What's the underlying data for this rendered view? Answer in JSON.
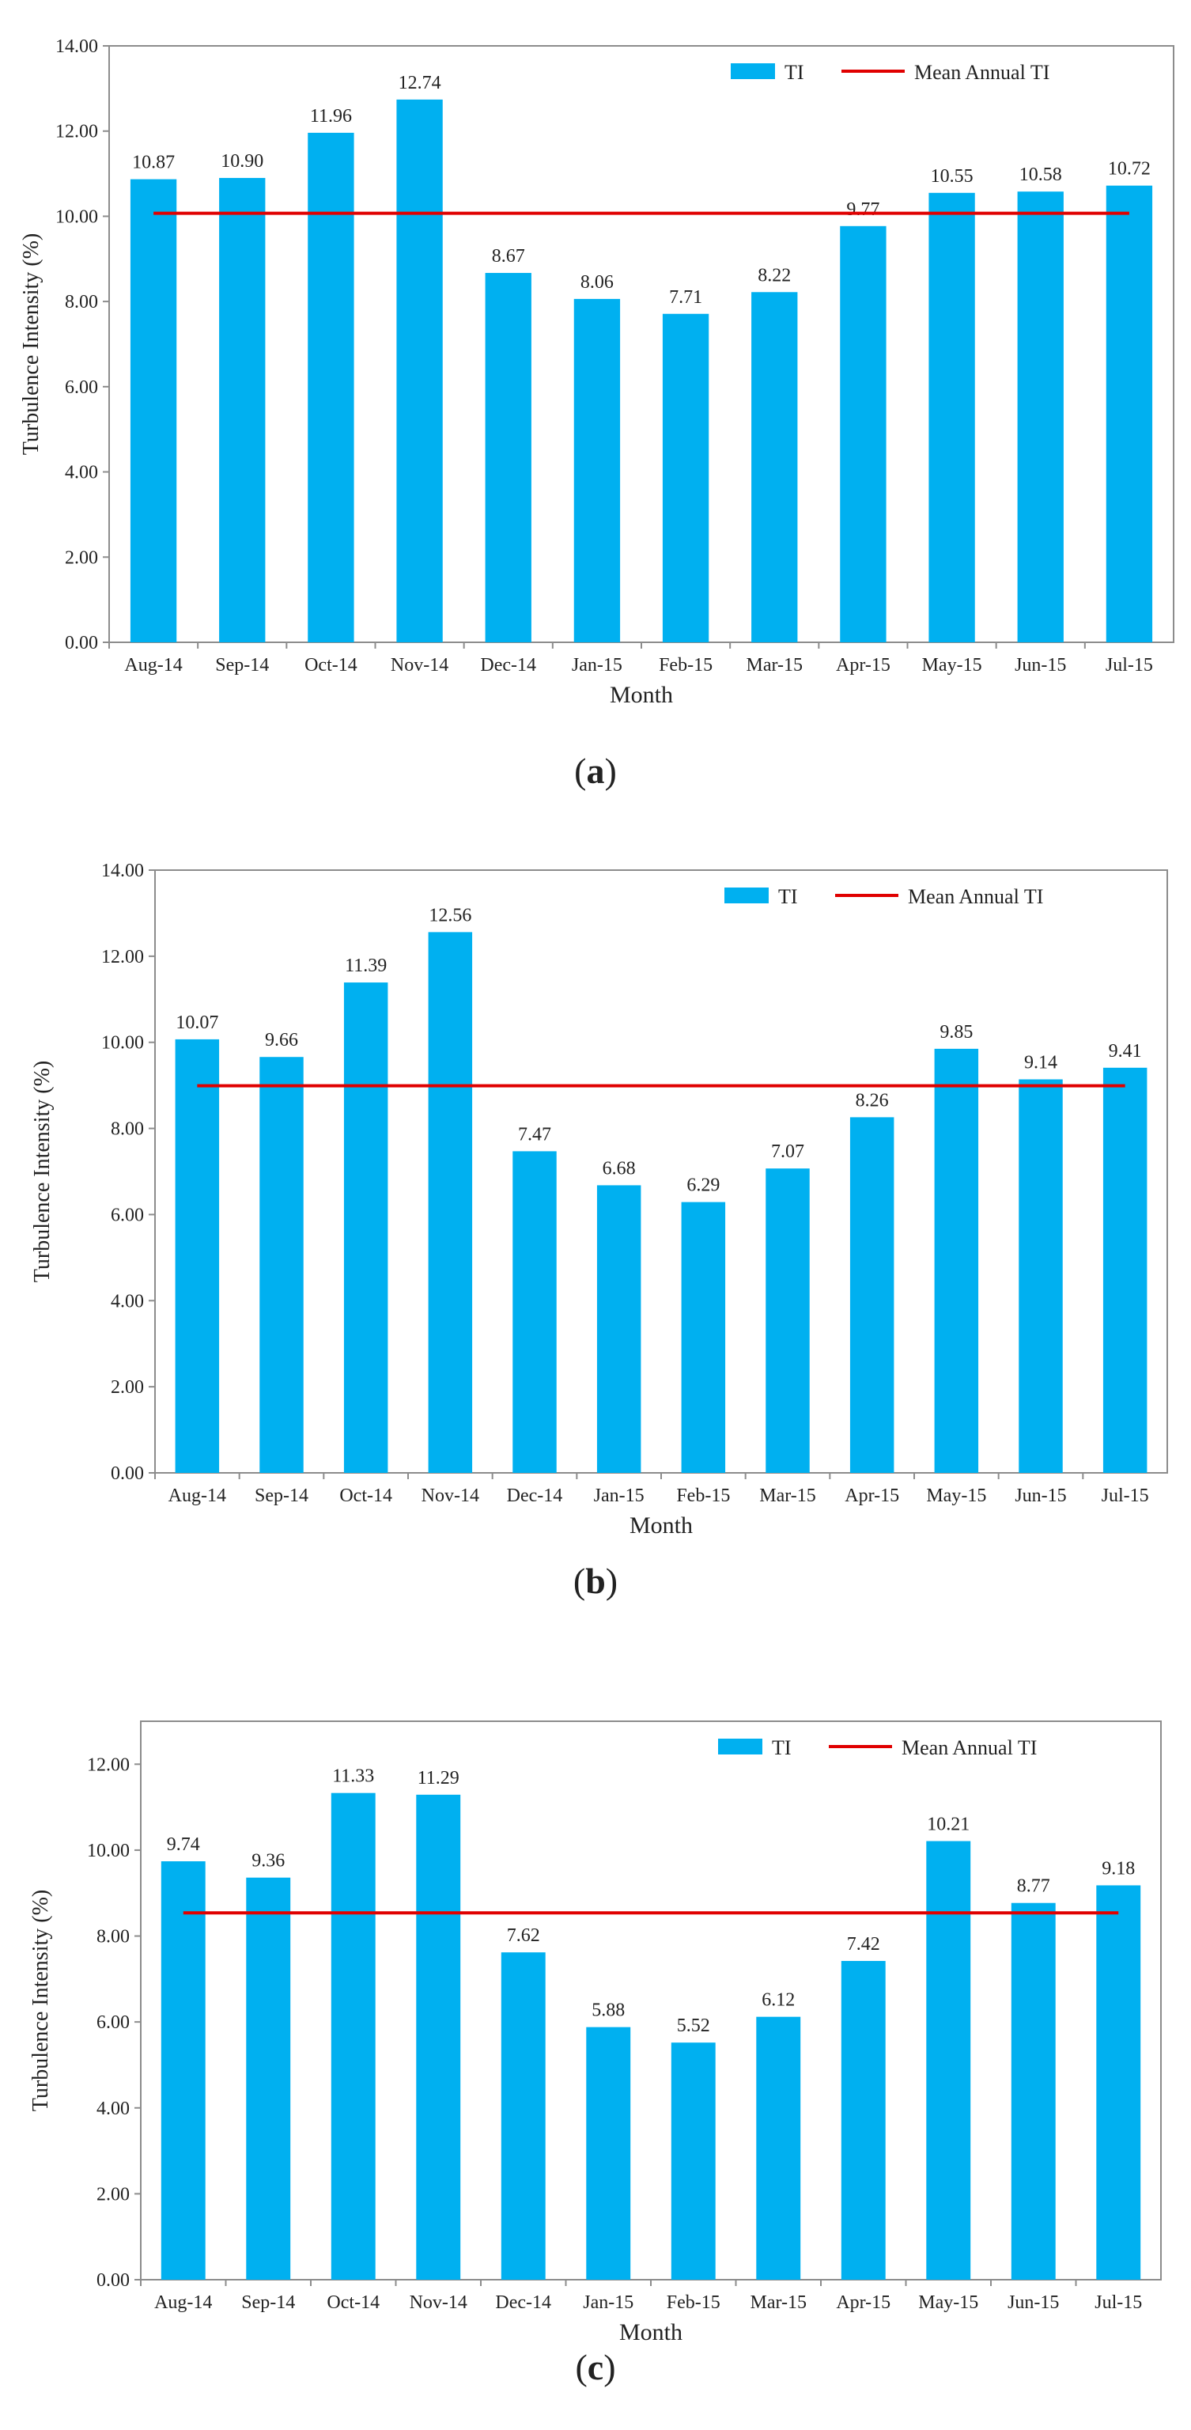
{
  "colors": {
    "bar": "#00B0F0",
    "mean_line": "#E00000",
    "axis": "#8c8c8c",
    "text": "#222222"
  },
  "chart_data": [
    {
      "type": "bar",
      "panel_label": "a",
      "title": "",
      "xlabel": "Month",
      "ylabel": "Turbulence Intensity (%)",
      "ylim": [
        0,
        14
      ],
      "ytick_step": 2,
      "ytick_labels": [
        "0.00",
        "2.00",
        "4.00",
        "6.00",
        "8.00",
        "10.00",
        "12.00",
        "14.00"
      ],
      "categories": [
        "Aug-14",
        "Sep-14",
        "Oct-14",
        "Nov-14",
        "Dec-14",
        "Jan-15",
        "Feb-15",
        "Mar-15",
        "Apr-15",
        "May-15",
        "Jun-15",
        "Jul-15"
      ],
      "values": [
        10.87,
        10.9,
        11.96,
        12.74,
        8.67,
        8.06,
        7.71,
        8.22,
        9.77,
        10.55,
        10.58,
        10.72
      ],
      "value_labels": [
        "10.87",
        "10.90",
        "11.96",
        "12.74",
        "8.67",
        "8.06",
        "7.71",
        "8.22",
        "9.77",
        "10.55",
        "10.58",
        "10.72"
      ],
      "mean_annual": 10.07,
      "legend": {
        "placement": "top-right",
        "bar_label": "TI",
        "line_label": "Mean Annual TI"
      }
    },
    {
      "type": "bar",
      "panel_label": "b",
      "title": "",
      "xlabel": "Month",
      "ylabel": "Turbulence Intensity (%)",
      "ylim": [
        0,
        14
      ],
      "ytick_step": 2,
      "ytick_labels": [
        "0.00",
        "2.00",
        "4.00",
        "6.00",
        "8.00",
        "10.00",
        "12.00",
        "14.00"
      ],
      "categories": [
        "Aug-14",
        "Sep-14",
        "Oct-14",
        "Nov-14",
        "Dec-14",
        "Jan-15",
        "Feb-15",
        "Mar-15",
        "Apr-15",
        "May-15",
        "Jun-15",
        "Jul-15"
      ],
      "values": [
        10.07,
        9.66,
        11.39,
        12.56,
        7.47,
        6.68,
        6.29,
        7.07,
        8.26,
        9.85,
        9.14,
        9.41
      ],
      "value_labels": [
        "10.07",
        "9.66",
        "11.39",
        "12.56",
        "7.47",
        "6.68",
        "6.29",
        "7.07",
        "8.26",
        "9.85",
        "9.14",
        "9.41"
      ],
      "mean_annual": 8.99,
      "legend": {
        "placement": "top-right",
        "bar_label": "TI",
        "line_label": "Mean Annual TI"
      }
    },
    {
      "type": "bar",
      "panel_label": "c",
      "title": "",
      "xlabel": "Month",
      "ylabel": "Turbulence Intensity (%)",
      "ylim": [
        0,
        13
      ],
      "ytick_step": 2,
      "ytick_labels": [
        "0.00",
        "2.00",
        "4.00",
        "6.00",
        "8.00",
        "10.00",
        "12.00"
      ],
      "categories": [
        "Aug-14",
        "Sep-14",
        "Oct-14",
        "Nov-14",
        "Dec-14",
        "Jan-15",
        "Feb-15",
        "Mar-15",
        "Apr-15",
        "May-15",
        "Jun-15",
        "Jul-15"
      ],
      "values": [
        9.74,
        9.36,
        11.33,
        11.29,
        7.62,
        5.88,
        5.52,
        6.12,
        7.42,
        10.21,
        8.77,
        9.18
      ],
      "value_labels": [
        "9.74",
        "9.36",
        "11.33",
        "11.29",
        "7.62",
        "5.88",
        "5.52",
        "6.12",
        "7.42",
        "10.21",
        "8.77",
        "9.18"
      ],
      "mean_annual": 8.54,
      "legend": {
        "placement": "top-right",
        "bar_label": "TI",
        "line_label": "Mean Annual TI"
      }
    }
  ]
}
